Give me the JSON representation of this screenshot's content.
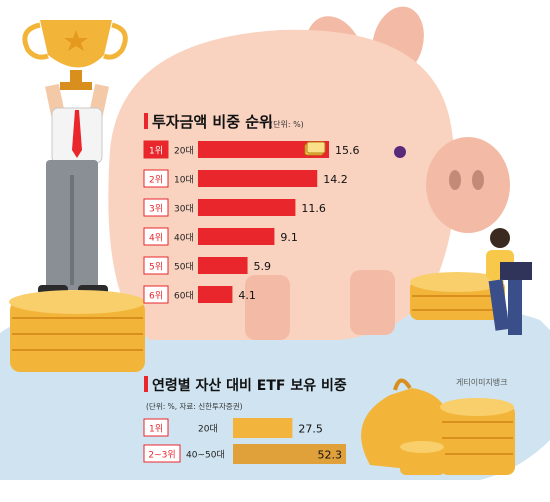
{
  "chart_data": [
    {
      "type": "bar",
      "title": "투자금액 비중 순위",
      "unit_note": "(단위: %)",
      "ranks": [
        "1위",
        "2위",
        "3위",
        "4위",
        "5위",
        "6위"
      ],
      "categories": [
        "20대",
        "10대",
        "30대",
        "40대",
        "50대",
        "60대"
      ],
      "values": [
        15.6,
        14.2,
        11.6,
        9.1,
        5.9,
        4.1
      ],
      "value_labels": [
        "15.6",
        "14.2",
        "11.6",
        "9.1",
        "5.9",
        "4.1"
      ],
      "xlim": [
        0,
        15.6
      ],
      "bar_color": "#e8262b",
      "highlight_color": "#e8262b",
      "rank_badge_color": "#ffffff"
    },
    {
      "type": "bar",
      "title": "연령별 자산 대비 ETF 보유 비중",
      "unit_note": "(단위: %, 자료: 신한투자증권)",
      "ranks": [
        "1위",
        "2~3위"
      ],
      "categories": [
        "20대",
        "40~50대"
      ],
      "values": [
        27.5,
        52.3
      ],
      "value_labels": [
        "27.5",
        "52.3"
      ],
      "xlim": [
        0,
        52.3
      ],
      "bar_colors": [
        "#f3b43d",
        "#e0a03a"
      ]
    }
  ],
  "credit": "게티이미지뱅크",
  "colors": {
    "pig": "#f9d3c0",
    "pig_dark": "#f3bba6",
    "puddle": "#cfe4f0",
    "coin": "#f2b53a",
    "coin_edge": "#d98f1e",
    "red": "#e8262b"
  }
}
